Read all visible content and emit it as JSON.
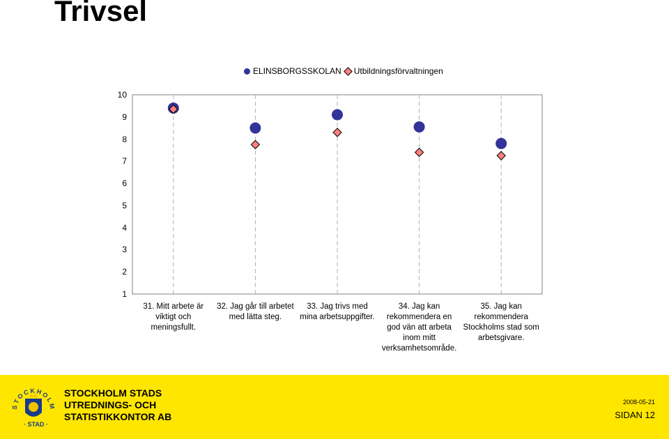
{
  "page": {
    "title": "Trivsel",
    "org_lines": [
      "STOCKHOLM STADS",
      "UTREDNINGS- OCH",
      "STATISTIKKONTOR AB"
    ],
    "date": "2008-05-21",
    "page_label": "SIDAN 12",
    "logo_text": "STOCKHOLMS STAD"
  },
  "chart_data": {
    "type": "scatter",
    "categories": [
      [
        "31. Mitt arbete är",
        "viktigt och",
        "meningsfullt."
      ],
      [
        "32. Jag går till arbetet",
        "med lätta steg."
      ],
      [
        "33. Jag trivs med",
        "mina arbetsuppgifter."
      ],
      [
        "34. Jag kan",
        "rekommendera en",
        "god vän att arbeta",
        "inom mitt",
        "verksamhetsområde."
      ],
      [
        "35. Jag kan",
        "rekommendera",
        "Stockholms stad som",
        "arbetsgivare."
      ]
    ],
    "series": [
      {
        "name": "ELINSBORGSSKOLAN",
        "marker": "circle",
        "color": "#333399",
        "values": [
          9.4,
          8.5,
          9.1,
          8.55,
          7.8
        ]
      },
      {
        "name": "Utbildningsförvaltningen",
        "marker": "diamond",
        "color": "#ff8080",
        "values": [
          9.35,
          7.75,
          8.3,
          7.4,
          7.25
        ]
      }
    ],
    "yticks": [
      1,
      2,
      3,
      4,
      5,
      6,
      7,
      8,
      9,
      10
    ],
    "ylim": [
      1,
      10
    ],
    "grid": "vertical-dashed",
    "legend": "top"
  }
}
